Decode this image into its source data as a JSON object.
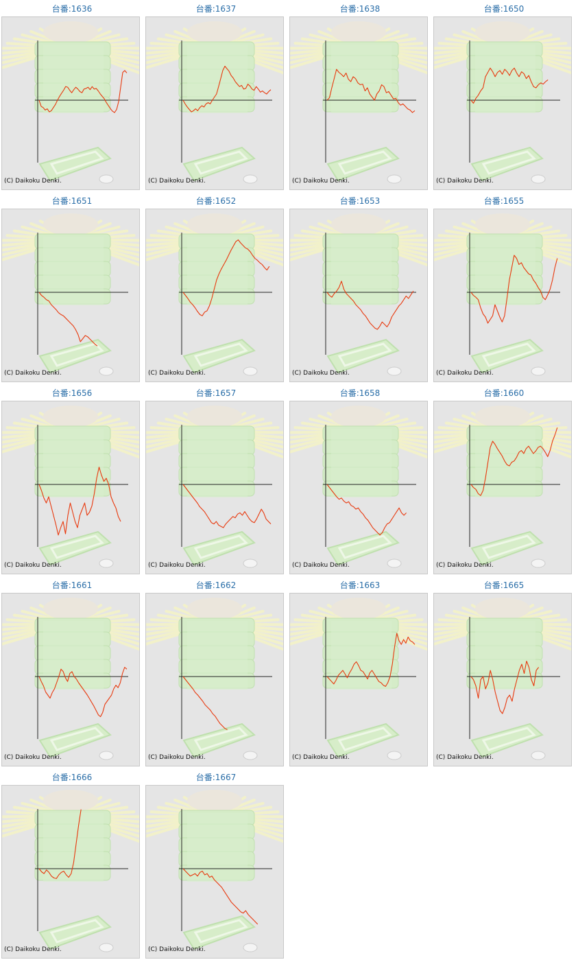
{
  "credit": "(C) Daikoku Denki.",
  "colors": {
    "line": "#e8380d",
    "axis": "#222222",
    "title": "#2a6ea8",
    "panel": "#e5e5e5"
  },
  "chart_data": [
    {
      "type": "line",
      "title": "台番:1636",
      "values": [
        0,
        -10,
        -12,
        -16,
        -14,
        -19,
        -17,
        -12,
        -7,
        0,
        6,
        11,
        16,
        22,
        21,
        16,
        12,
        17,
        21,
        18,
        14,
        12,
        18,
        19,
        21,
        17,
        22,
        18,
        19,
        15,
        10,
        6,
        2,
        -4,
        -9,
        -14,
        -18,
        -20,
        -15,
        -2,
        22,
        45,
        48,
        44
      ]
    },
    {
      "type": "line",
      "title": "台番:1637",
      "values": [
        0,
        -6,
        -11,
        -15,
        -19,
        -17,
        -14,
        -17,
        -12,
        -9,
        -11,
        -6,
        -4,
        -6,
        0,
        5,
        10,
        22,
        35,
        48,
        55,
        51,
        47,
        40,
        36,
        30,
        26,
        22,
        24,
        18,
        19,
        26,
        23,
        18,
        16,
        22,
        18,
        13,
        15,
        12,
        10,
        14,
        17
      ]
    },
    {
      "type": "line",
      "title": "台番:1638",
      "values": [
        0,
        4,
        20,
        35,
        50,
        45,
        42,
        38,
        44,
        34,
        30,
        38,
        35,
        28,
        25,
        26,
        15,
        20,
        10,
        5,
        0,
        10,
        15,
        25,
        22,
        12,
        14,
        8,
        2,
        3,
        -4,
        -8,
        -6,
        -10,
        -14,
        -16,
        -20,
        -17
      ]
    },
    {
      "type": "line",
      "title": "台番:1650",
      "values": [
        0,
        -5,
        3,
        8,
        15,
        20,
        38,
        45,
        52,
        46,
        38,
        45,
        48,
        42,
        50,
        46,
        40,
        48,
        52,
        44,
        38,
        46,
        43,
        35,
        40,
        30,
        22,
        20,
        25,
        28,
        26,
        30,
        33
      ]
    },
    {
      "type": "line",
      "title": "台番:1651",
      "values": [
        0,
        -5,
        -8,
        -12,
        -14,
        -20,
        -24,
        -28,
        -33,
        -36,
        -38,
        -42,
        -46,
        -50,
        -54,
        -60,
        -68,
        -80,
        -75,
        -70,
        -72,
        -76,
        -80,
        -84,
        -87
      ]
    },
    {
      "type": "line",
      "title": "台番:1652",
      "values": [
        0,
        -5,
        -10,
        -16,
        -20,
        -25,
        -31,
        -36,
        -38,
        -32,
        -30,
        -22,
        -10,
        5,
        20,
        30,
        38,
        45,
        52,
        60,
        68,
        75,
        82,
        85,
        80,
        76,
        72,
        70,
        66,
        60,
        55,
        52,
        48,
        45,
        40,
        36,
        42
      ]
    },
    {
      "type": "line",
      "title": "台番:1653",
      "values": [
        0,
        -5,
        -8,
        -2,
        2,
        8,
        18,
        5,
        -2,
        -6,
        -10,
        -14,
        -20,
        -24,
        -28,
        -34,
        -38,
        -44,
        -50,
        -54,
        -58,
        -60,
        -55,
        -48,
        -52,
        -56,
        -50,
        -40,
        -34,
        -28,
        -22,
        -18,
        -12,
        -6,
        -10,
        -4,
        2
      ]
    },
    {
      "type": "line",
      "title": "台番:1655",
      "values": [
        0,
        -5,
        -8,
        -12,
        -25,
        -35,
        -40,
        -50,
        -44,
        -38,
        -20,
        -30,
        -40,
        -48,
        -38,
        -10,
        20,
        40,
        60,
        55,
        45,
        48,
        40,
        35,
        30,
        28,
        20,
        15,
        8,
        2,
        -8,
        -12,
        -4,
        5,
        20,
        40,
        55
      ]
    },
    {
      "type": "line",
      "title": "台番:1656",
      "values": [
        0,
        -10,
        -22,
        -30,
        -20,
        -35,
        -50,
        -65,
        -82,
        -70,
        -60,
        -80,
        -50,
        -30,
        -45,
        -60,
        -70,
        -50,
        -40,
        -30,
        -50,
        -45,
        -35,
        -15,
        10,
        28,
        15,
        5,
        10,
        0,
        -20,
        -30,
        -38,
        -52,
        -60
      ]
    },
    {
      "type": "line",
      "title": "台番:1657",
      "values": [
        0,
        -5,
        -10,
        -15,
        -20,
        -25,
        -30,
        -36,
        -40,
        -44,
        -50,
        -56,
        -62,
        -64,
        -60,
        -66,
        -68,
        -70,
        -64,
        -60,
        -56,
        -52,
        -54,
        -48,
        -46,
        -50,
        -44,
        -50,
        -56,
        -60,
        -62,
        -56,
        -48,
        -40,
        -46,
        -56,
        -60,
        -64
      ]
    },
    {
      "type": "line",
      "title": "台番:1658",
      "values": [
        0,
        -5,
        -10,
        -15,
        -20,
        -24,
        -22,
        -27,
        -30,
        -28,
        -34,
        -36,
        -40,
        -38,
        -44,
        -48,
        -54,
        -58,
        -64,
        -70,
        -74,
        -78,
        -82,
        -78,
        -70,
        -64,
        -62,
        -56,
        -50,
        -44,
        -38,
        -46,
        -50,
        -46
      ]
    },
    {
      "type": "line",
      "title": "台番:1660",
      "values": [
        0,
        -5,
        -8,
        -15,
        -18,
        -10,
        10,
        35,
        60,
        70,
        65,
        58,
        52,
        46,
        38,
        32,
        30,
        36,
        38,
        44,
        52,
        55,
        50,
        58,
        62,
        56,
        50,
        54,
        60,
        62,
        58,
        52,
        45,
        55,
        70,
        80,
        92
      ]
    },
    {
      "type": "line",
      "title": "台番:1661",
      "values": [
        0,
        -8,
        -15,
        -25,
        -30,
        -35,
        -26,
        -20,
        -10,
        0,
        12,
        8,
        -2,
        -8,
        5,
        8,
        0,
        -4,
        -10,
        -15,
        -20,
        -25,
        -30,
        -36,
        -42,
        -48,
        -55,
        -62,
        -65,
        -58,
        -45,
        -40,
        -35,
        -30,
        -20,
        -14,
        -18,
        -10,
        5,
        15,
        12
      ]
    },
    {
      "type": "line",
      "title": "台番:1662",
      "values": [
        0,
        -5,
        -10,
        -15,
        -20,
        -26,
        -30,
        -35,
        -40,
        -46,
        -50,
        -54,
        -60,
        -64,
        -70,
        -76,
        -80,
        -84,
        -86
      ]
    },
    {
      "type": "line",
      "title": "台番:1663",
      "values": [
        0,
        -4,
        -8,
        -12,
        -6,
        2,
        6,
        10,
        4,
        -2,
        6,
        12,
        20,
        24,
        18,
        10,
        8,
        2,
        -4,
        6,
        10,
        4,
        -2,
        -8,
        -10,
        -14,
        -16,
        -10,
        0,
        20,
        48,
        70,
        58,
        52,
        60,
        54,
        64,
        58,
        56,
        52
      ]
    },
    {
      "type": "line",
      "title": "台番:1665",
      "values": [
        0,
        -5,
        -15,
        -35,
        -5,
        0,
        -20,
        -10,
        10,
        -5,
        -25,
        -40,
        -55,
        -60,
        -50,
        -35,
        -30,
        -40,
        -20,
        -5,
        10,
        20,
        5,
        25,
        15,
        -5,
        -15,
        10,
        15
      ]
    },
    {
      "type": "line",
      "title": "台番:1666",
      "values": [
        0,
        -5,
        -8,
        -2,
        -6,
        -12,
        -15,
        -16,
        -10,
        -6,
        -4,
        -10,
        -14,
        -8,
        10,
        40,
        70,
        96
      ]
    },
    {
      "type": "line",
      "title": "台番:1667",
      "values": [
        0,
        -4,
        -8,
        -12,
        -10,
        -8,
        -12,
        -6,
        -4,
        -10,
        -8,
        -14,
        -12,
        -18,
        -22,
        -26,
        -30,
        -36,
        -42,
        -48,
        -54,
        -58,
        -62,
        -66,
        -70,
        -72,
        -68,
        -74,
        -78,
        -82,
        -86,
        -90
      ]
    }
  ]
}
